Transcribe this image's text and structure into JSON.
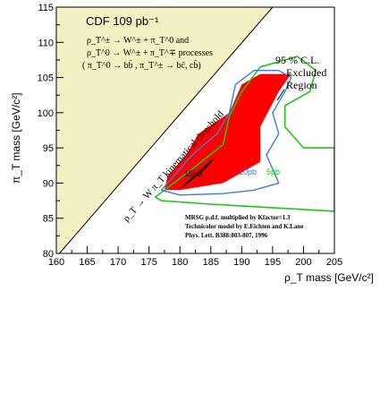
{
  "chart_data": {
    "type": "contour",
    "xlabel": "ρ_T mass [GeV/c²]",
    "ylabel": "π_T mass [GeV/c²]",
    "xlim": [
      160,
      205
    ],
    "ylim": [
      80,
      115
    ],
    "x_ticks": [
      160,
      165,
      170,
      175,
      180,
      185,
      190,
      195,
      200,
      205
    ],
    "y_ticks": [
      80,
      85,
      90,
      95,
      100,
      105,
      110,
      115
    ],
    "title": "CDF  109 pb⁻¹",
    "process_lines": [
      "ρ_T^± → W^± + π_T^0  and",
      "ρ_T^0 → W^± + π_T^∓  processes",
      "( π_T^0 → bb̄ , π_T^± → bc̄, cb̄)"
    ],
    "threshold_label": "ρ_T → W π_T kinematical threshold",
    "exclusion_label": [
      "95 % C.L.",
      "Excluded",
      "Region"
    ],
    "caption_lines": [
      "MRSG p.d.f.  multiplied by Kfactor=1.3",
      "Technicolor model by E.Eichten and K.Lane",
      "Phys. Lett. B388:803-807, 1996"
    ],
    "contour_labels": [
      "15pb",
      "10pb",
      "5pb"
    ],
    "kinematic_threshold": [
      [
        160.5,
        80
      ],
      [
        195,
        115
      ]
    ],
    "excluded_region": [
      [
        180,
        89
      ],
      [
        177.5,
        89
      ],
      [
        178,
        91
      ],
      [
        181,
        94
      ],
      [
        183,
        97
      ],
      [
        188,
        100
      ],
      [
        190,
        104
      ],
      [
        193,
        105.5
      ],
      [
        198,
        105.5
      ],
      [
        196,
        103
      ],
      [
        193,
        98
      ],
      [
        193,
        93
      ],
      [
        187,
        90
      ]
    ],
    "contour_15pb": [
      [
        180.5,
        89.5
      ],
      [
        184,
        92
      ],
      [
        185.5,
        93.5
      ],
      [
        183,
        91.5
      ],
      [
        181,
        90
      ]
    ],
    "contour_10pb": [
      [
        177,
        89
      ],
      [
        179,
        91
      ],
      [
        182,
        94
      ],
      [
        186,
        97
      ],
      [
        188,
        100
      ],
      [
        189,
        104
      ],
      [
        192,
        106
      ],
      [
        196,
        106
      ],
      [
        198,
        105
      ],
      [
        197,
        103
      ],
      [
        195,
        100
      ],
      [
        196,
        97
      ],
      [
        194,
        94
      ],
      [
        195,
        92
      ],
      [
        196,
        90
      ],
      [
        192,
        89
      ],
      [
        187,
        88.5
      ],
      [
        180,
        88.3
      ]
    ],
    "contour_5pb": [
      [
        176,
        88
      ],
      [
        182,
        92
      ],
      [
        187,
        95.5
      ],
      [
        188,
        99.5
      ],
      [
        190,
        103
      ],
      [
        193,
        106.5
      ],
      [
        199,
        108
      ],
      [
        202,
        106
      ],
      [
        201,
        103
      ],
      [
        197,
        101
      ],
      [
        197,
        98
      ],
      [
        200,
        95
      ],
      [
        205,
        95
      ],
      [
        205,
        86
      ],
      [
        195,
        86.5
      ],
      [
        185,
        87
      ],
      [
        177,
        87.5
      ]
    ],
    "grid": false,
    "colors": {
      "excluded": "#ff0000",
      "threshold_fill": "#f3f0c4",
      "contour_15pb": "#000000",
      "contour_10pb": "#3a7be0",
      "contour_5pb": "#21c61a"
    }
  }
}
